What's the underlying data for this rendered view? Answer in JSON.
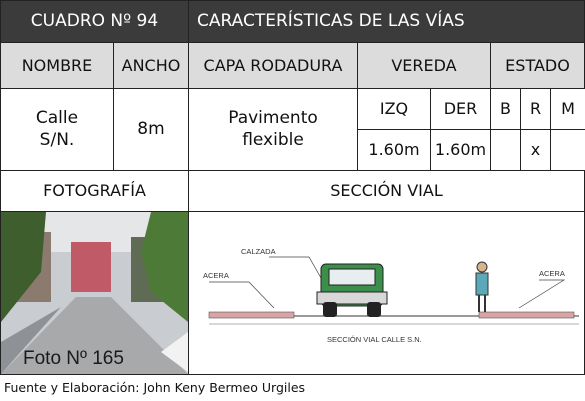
{
  "header": {
    "code": "CUADRO Nº 94",
    "title": "CARACTERÍSTICAS DE LAS VÍAS"
  },
  "columns": {
    "name": "NOMBRE",
    "width": "ANCHO",
    "surface": "CAPA RODADURA",
    "sidewalk": "VEREDA",
    "status": "ESTADO",
    "left": "IZQ",
    "right": "DER",
    "good": "B",
    "regular": "R",
    "bad": "M"
  },
  "row": {
    "name": "Calle\nS/N.",
    "width": "8m",
    "surface": "Pavimento\nflexible",
    "left": "1.60m",
    "right": "1.60m",
    "regular": "x"
  },
  "sections": {
    "photo": "FOTOGRAFÍA",
    "profile": "SECCIÓN  VIAL"
  },
  "photo": {
    "caption": "Foto Nº 165"
  },
  "profile": {
    "road": "CALZADA",
    "sidewalk_left": "ACERA",
    "sidewalk_right": "ACERA",
    "caption": "SECCIÓN VIAL CALLE S.N."
  },
  "footer": {
    "source": "Fuente y Elaboración: John Keny Bermeo Urgiles"
  }
}
